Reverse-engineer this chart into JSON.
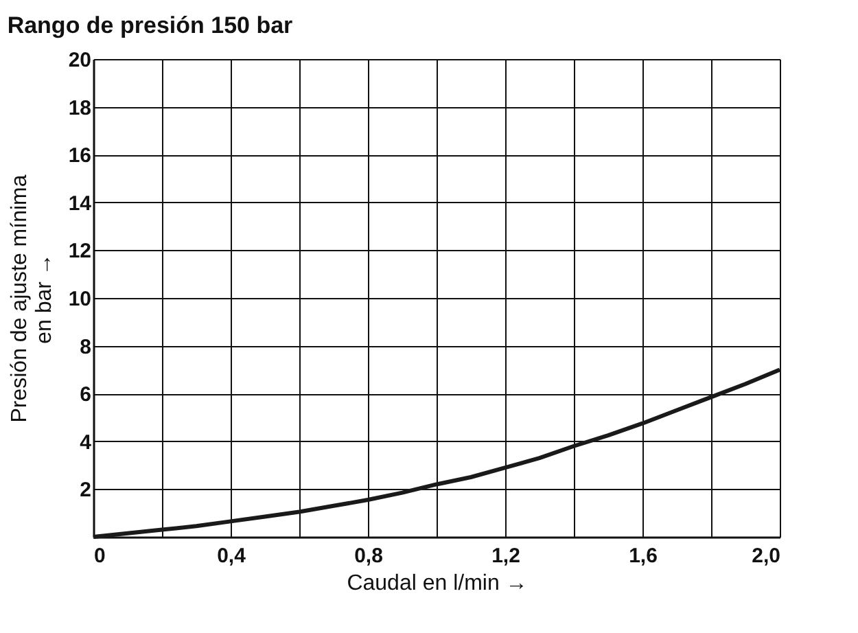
{
  "chart_data": {
    "type": "line",
    "title": "Rango de presión 150 bar",
    "xlabel": "Caudal en l/min →",
    "ylabel": "Presión de ajuste mínima\nen bar →",
    "x": [
      0,
      0.1,
      0.2,
      0.3,
      0.4,
      0.5,
      0.6,
      0.7,
      0.8,
      0.9,
      1.0,
      1.1,
      1.2,
      1.3,
      1.4,
      1.5,
      1.6,
      1.7,
      1.8,
      1.9,
      2.0
    ],
    "series": [
      {
        "color": "#1a1a1a",
        "values": [
          0,
          0.15,
          0.3,
          0.45,
          0.65,
          0.85,
          1.05,
          1.3,
          1.55,
          1.85,
          2.2,
          2.5,
          2.9,
          3.3,
          3.8,
          4.25,
          4.75,
          5.3,
          5.85,
          6.4,
          7.0
        ]
      }
    ],
    "xlim": [
      0,
      2.0
    ],
    "ylim": [
      0,
      20
    ],
    "xticks": [
      0,
      {
        "value": 0.2,
        "label": null
      },
      {
        "value": 0.4,
        "label": "0,4"
      },
      {
        "value": 0.6,
        "label": null
      },
      {
        "value": 0.8,
        "label": "0,8"
      },
      {
        "value": 1.0,
        "label": null
      },
      {
        "value": 1.2,
        "label": "1,2"
      },
      {
        "value": 1.4,
        "label": null
      },
      {
        "value": 1.6,
        "label": "1,6"
      },
      {
        "value": 1.8,
        "label": null
      },
      {
        "value": 2.0,
        "label": "2,0"
      }
    ],
    "yticks": [
      {
        "value": 0,
        "label": null
      },
      2,
      4,
      6,
      8,
      10,
      12,
      14,
      16,
      18,
      20
    ],
    "grid": true,
    "marker": "none",
    "line_style": "solid"
  }
}
